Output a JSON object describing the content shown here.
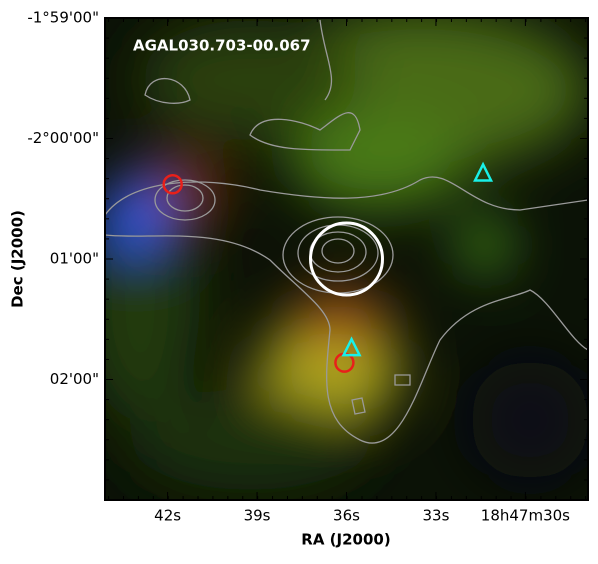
{
  "chart_data": {
    "type": "image",
    "title": "AGAL030.703-00.067",
    "x_label": "RA (J2000)",
    "y_label": "Dec (J2000)",
    "xlim": [
      44.1,
      27.9
    ],
    "xticks": [
      {
        "value": 42,
        "label": "42s"
      },
      {
        "value": 39,
        "label": "39s"
      },
      {
        "value": 36,
        "label": "36s"
      },
      {
        "value": 33,
        "label": "33s"
      },
      {
        "value": 30,
        "label": "18h47m30s"
      }
    ],
    "ylim": [
      -123,
      -119
    ],
    "yticks": [
      {
        "value": -119,
        "label": "-1°59'00\""
      },
      {
        "value": -120,
        "label": "-2°00'00\""
      },
      {
        "value": -121,
        "label": "01'00\""
      },
      {
        "value": -122,
        "label": "02'00\""
      }
    ],
    "red_circles": {
      "color": "#e8201a",
      "x": [
        41.83,
        36.07
      ],
      "y": [
        -120.38,
        -121.86
      ]
    },
    "cyan_triangles": {
      "color": "#19f0e8",
      "x": [
        31.42,
        35.83
      ],
      "y": [
        -120.29,
        -121.74
      ]
    },
    "white_circle": {
      "color": "#ffffff",
      "x": [
        36.0
      ],
      "y": [
        -121.0
      ]
    }
  }
}
